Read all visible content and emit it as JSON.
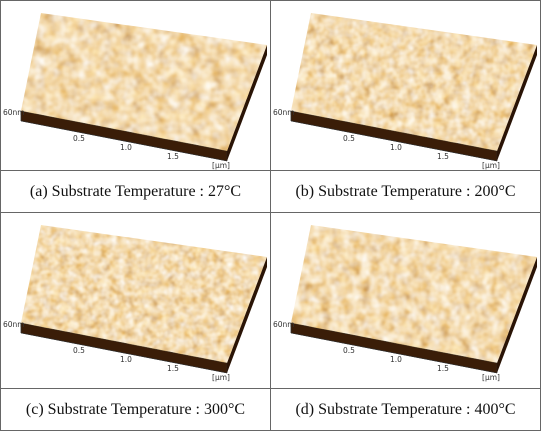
{
  "panels": [
    {
      "caption": "(a) Substrate Temperature : 27°C",
      "height_label": "60nm",
      "x_ticks": [
        "0.5",
        "1.0",
        "1.5"
      ],
      "unit": "[μm]"
    },
    {
      "caption": "(b) Substrate Temperature : 200°C",
      "height_label": "60nm",
      "x_ticks": [
        "0.5",
        "1.0",
        "1.5"
      ],
      "unit": "[μm]"
    },
    {
      "caption": "(c) Substrate Temperature : 300°C",
      "height_label": "60nm",
      "x_ticks": [
        "0.5",
        "1.0",
        "1.5"
      ],
      "unit": "[μm]"
    },
    {
      "caption": "(d) Substrate Temperature : 400°C",
      "height_label": "60nm",
      "x_ticks": [
        "0.5",
        "1.0",
        "1.5"
      ],
      "unit": "[μm]"
    }
  ]
}
